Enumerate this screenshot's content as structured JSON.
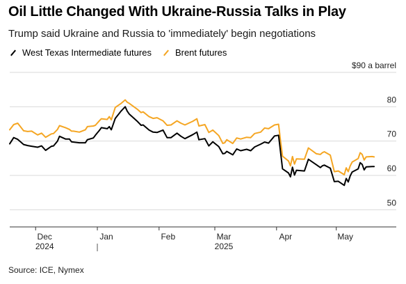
{
  "title": "Oil Little Changed With Ukraine-Russia Talks in Play",
  "subtitle": "Trump said Ukraine and Russia to 'immediately' begin negotiations",
  "source": "Source: ICE, Nymex",
  "colors": {
    "wti": "#000000",
    "brent": "#f5a623",
    "grid": "#d9d9d9"
  },
  "chart_data": {
    "type": "line",
    "unit_label": "$90 a barrel",
    "ylim": [
      45,
      90
    ],
    "yticks": [
      50,
      60,
      70,
      80
    ],
    "ytick_labels": [
      "50",
      "60",
      "70",
      "80"
    ],
    "xlim": [
      "2024-11-18",
      "2025-05-21"
    ],
    "x_month_ticks": [
      {
        "date": "2024-12-01",
        "label": "Dec"
      },
      {
        "date": "2025-01-01",
        "label": "Jan"
      },
      {
        "date": "2025-02-01",
        "label": "Feb"
      },
      {
        "date": "2025-03-01",
        "label": "Mar"
      },
      {
        "date": "2025-04-01",
        "label": "Apr"
      },
      {
        "date": "2025-05-01",
        "label": "May"
      }
    ],
    "x_year_labels": [
      {
        "date": "2024-12-01",
        "label": "2024"
      },
      {
        "date": "2025-03-01",
        "label": "2025"
      }
    ],
    "year_divider": "2025-01-01",
    "grid": true,
    "legend_position": "top-left",
    "series": [
      {
        "key": "wti",
        "name": "West Texas Intermediate futures",
        "points": [
          [
            "2024-11-18",
            69.2
          ],
          [
            "2024-11-20",
            71.0
          ],
          [
            "2024-11-22",
            70.5
          ],
          [
            "2024-11-25",
            69.0
          ],
          [
            "2024-11-27",
            68.7
          ],
          [
            "2024-11-29",
            68.5
          ],
          [
            "2024-12-02",
            68.2
          ],
          [
            "2024-12-04",
            68.6
          ],
          [
            "2024-12-06",
            67.3
          ],
          [
            "2024-12-09",
            68.5
          ],
          [
            "2024-12-10",
            68.6
          ],
          [
            "2024-12-12",
            70.0
          ],
          [
            "2024-12-13",
            71.4
          ],
          [
            "2024-12-16",
            70.6
          ],
          [
            "2024-12-18",
            70.6
          ],
          [
            "2024-12-19",
            69.8
          ],
          [
            "2024-12-20",
            69.7
          ],
          [
            "2024-12-23",
            69.5
          ],
          [
            "2024-12-26",
            69.5
          ],
          [
            "2024-12-27",
            70.4
          ],
          [
            "2024-12-30",
            70.9
          ],
          [
            "2024-12-31",
            71.7
          ],
          [
            "2025-01-02",
            73.1
          ],
          [
            "2025-01-03",
            73.9
          ],
          [
            "2025-01-06",
            73.6
          ],
          [
            "2025-01-07",
            74.2
          ],
          [
            "2025-01-08",
            73.3
          ],
          [
            "2025-01-10",
            76.6
          ],
          [
            "2025-01-13",
            78.8
          ],
          [
            "2025-01-15",
            80.0
          ],
          [
            "2025-01-16",
            78.7
          ],
          [
            "2025-01-17",
            77.9
          ],
          [
            "2025-01-21",
            75.8
          ],
          [
            "2025-01-23",
            74.6
          ],
          [
            "2025-01-24",
            74.7
          ],
          [
            "2025-01-27",
            73.2
          ],
          [
            "2025-01-29",
            72.6
          ],
          [
            "2025-01-31",
            72.5
          ],
          [
            "2025-02-03",
            73.2
          ],
          [
            "2025-02-05",
            71.0
          ],
          [
            "2025-02-07",
            71.0
          ],
          [
            "2025-02-10",
            72.3
          ],
          [
            "2025-02-12",
            71.4
          ],
          [
            "2025-02-14",
            70.7
          ],
          [
            "2025-02-18",
            71.9
          ],
          [
            "2025-02-20",
            72.6
          ],
          [
            "2025-02-21",
            70.4
          ],
          [
            "2025-02-24",
            70.7
          ],
          [
            "2025-02-26",
            68.6
          ],
          [
            "2025-02-28",
            69.8
          ],
          [
            "2025-03-03",
            68.4
          ],
          [
            "2025-03-05",
            66.3
          ],
          [
            "2025-03-06",
            66.4
          ],
          [
            "2025-03-07",
            67.0
          ],
          [
            "2025-03-10",
            66.0
          ],
          [
            "2025-03-12",
            67.7
          ],
          [
            "2025-03-14",
            67.2
          ],
          [
            "2025-03-17",
            67.6
          ],
          [
            "2025-03-19",
            67.2
          ],
          [
            "2025-03-21",
            68.3
          ],
          [
            "2025-03-24",
            69.1
          ],
          [
            "2025-03-26",
            69.7
          ],
          [
            "2025-03-28",
            69.4
          ],
          [
            "2025-03-31",
            71.5
          ],
          [
            "2025-04-02",
            71.7
          ],
          [
            "2025-04-03",
            66.9
          ],
          [
            "2025-04-04",
            61.9
          ],
          [
            "2025-04-07",
            60.7
          ],
          [
            "2025-04-08",
            59.6
          ],
          [
            "2025-04-09",
            62.4
          ],
          [
            "2025-04-10",
            60.1
          ],
          [
            "2025-04-11",
            61.5
          ],
          [
            "2025-04-15",
            61.3
          ],
          [
            "2025-04-17",
            64.7
          ],
          [
            "2025-04-21",
            63.1
          ],
          [
            "2025-04-23",
            62.3
          ],
          [
            "2025-04-24",
            62.8
          ],
          [
            "2025-04-25",
            63.0
          ],
          [
            "2025-04-28",
            62.1
          ],
          [
            "2025-04-30",
            58.2
          ],
          [
            "2025-05-02",
            58.3
          ],
          [
            "2025-05-05",
            57.1
          ],
          [
            "2025-05-06",
            59.1
          ],
          [
            "2025-05-07",
            58.1
          ],
          [
            "2025-05-08",
            59.9
          ],
          [
            "2025-05-09",
            61.0
          ],
          [
            "2025-05-12",
            61.9
          ],
          [
            "2025-05-13",
            63.7
          ],
          [
            "2025-05-14",
            63.2
          ],
          [
            "2025-05-15",
            61.6
          ],
          [
            "2025-05-16",
            62.5
          ],
          [
            "2025-05-19",
            62.6
          ],
          [
            "2025-05-20",
            62.6
          ]
        ]
      },
      {
        "key": "brent",
        "name": "Brent futures",
        "points": [
          [
            "2024-11-18",
            73.3
          ],
          [
            "2024-11-20",
            74.8
          ],
          [
            "2024-11-22",
            75.2
          ],
          [
            "2024-11-25",
            73.0
          ],
          [
            "2024-11-27",
            72.8
          ],
          [
            "2024-11-29",
            72.9
          ],
          [
            "2024-12-02",
            71.8
          ],
          [
            "2024-12-04",
            72.3
          ],
          [
            "2024-12-06",
            71.1
          ],
          [
            "2024-12-09",
            72.1
          ],
          [
            "2024-12-10",
            72.2
          ],
          [
            "2024-12-12",
            73.4
          ],
          [
            "2024-12-13",
            74.5
          ],
          [
            "2024-12-16",
            73.9
          ],
          [
            "2024-12-18",
            73.4
          ],
          [
            "2024-12-19",
            72.9
          ],
          [
            "2024-12-20",
            72.9
          ],
          [
            "2024-12-23",
            72.6
          ],
          [
            "2024-12-26",
            73.3
          ],
          [
            "2024-12-27",
            74.2
          ],
          [
            "2024-12-30",
            74.4
          ],
          [
            "2024-12-31",
            74.6
          ],
          [
            "2025-01-02",
            75.9
          ],
          [
            "2025-01-03",
            76.5
          ],
          [
            "2025-01-06",
            76.3
          ],
          [
            "2025-01-07",
            77.1
          ],
          [
            "2025-01-08",
            76.2
          ],
          [
            "2025-01-10",
            79.8
          ],
          [
            "2025-01-13",
            81.0
          ],
          [
            "2025-01-15",
            82.0
          ],
          [
            "2025-01-16",
            81.3
          ],
          [
            "2025-01-17",
            81.0
          ],
          [
            "2025-01-21",
            79.3
          ],
          [
            "2025-01-23",
            78.3
          ],
          [
            "2025-01-24",
            78.5
          ],
          [
            "2025-01-27",
            77.1
          ],
          [
            "2025-01-29",
            76.6
          ],
          [
            "2025-01-31",
            76.8
          ],
          [
            "2025-02-03",
            75.9
          ],
          [
            "2025-02-05",
            74.6
          ],
          [
            "2025-02-07",
            74.7
          ],
          [
            "2025-02-10",
            75.9
          ],
          [
            "2025-02-12",
            75.2
          ],
          [
            "2025-02-14",
            74.7
          ],
          [
            "2025-02-18",
            75.8
          ],
          [
            "2025-02-20",
            76.5
          ],
          [
            "2025-02-21",
            74.4
          ],
          [
            "2025-02-24",
            74.8
          ],
          [
            "2025-02-26",
            72.5
          ],
          [
            "2025-02-28",
            73.2
          ],
          [
            "2025-03-03",
            71.6
          ],
          [
            "2025-03-05",
            69.3
          ],
          [
            "2025-03-06",
            69.5
          ],
          [
            "2025-03-07",
            70.4
          ],
          [
            "2025-03-10",
            69.3
          ],
          [
            "2025-03-12",
            70.9
          ],
          [
            "2025-03-14",
            70.6
          ],
          [
            "2025-03-17",
            71.1
          ],
          [
            "2025-03-19",
            71.0
          ],
          [
            "2025-03-21",
            72.2
          ],
          [
            "2025-03-24",
            72.6
          ],
          [
            "2025-03-26",
            73.8
          ],
          [
            "2025-03-28",
            73.6
          ],
          [
            "2025-03-31",
            74.7
          ],
          [
            "2025-04-02",
            74.9
          ],
          [
            "2025-04-03",
            70.1
          ],
          [
            "2025-04-04",
            65.6
          ],
          [
            "2025-04-07",
            64.2
          ],
          [
            "2025-04-08",
            62.8
          ],
          [
            "2025-04-09",
            65.5
          ],
          [
            "2025-04-10",
            63.3
          ],
          [
            "2025-04-11",
            64.8
          ],
          [
            "2025-04-15",
            64.7
          ],
          [
            "2025-04-17",
            68.0
          ],
          [
            "2025-04-21",
            66.3
          ],
          [
            "2025-04-23",
            66.1
          ],
          [
            "2025-04-24",
            66.6
          ],
          [
            "2025-04-25",
            66.9
          ],
          [
            "2025-04-28",
            65.9
          ],
          [
            "2025-04-30",
            61.1
          ],
          [
            "2025-05-02",
            61.3
          ],
          [
            "2025-05-05",
            60.2
          ],
          [
            "2025-05-06",
            62.2
          ],
          [
            "2025-05-07",
            61.1
          ],
          [
            "2025-05-08",
            62.8
          ],
          [
            "2025-05-09",
            63.9
          ],
          [
            "2025-05-12",
            64.9
          ],
          [
            "2025-05-13",
            66.6
          ],
          [
            "2025-05-14",
            66.1
          ],
          [
            "2025-05-15",
            64.5
          ],
          [
            "2025-05-16",
            65.4
          ],
          [
            "2025-05-19",
            65.5
          ],
          [
            "2025-05-20",
            65.4
          ]
        ]
      }
    ]
  }
}
